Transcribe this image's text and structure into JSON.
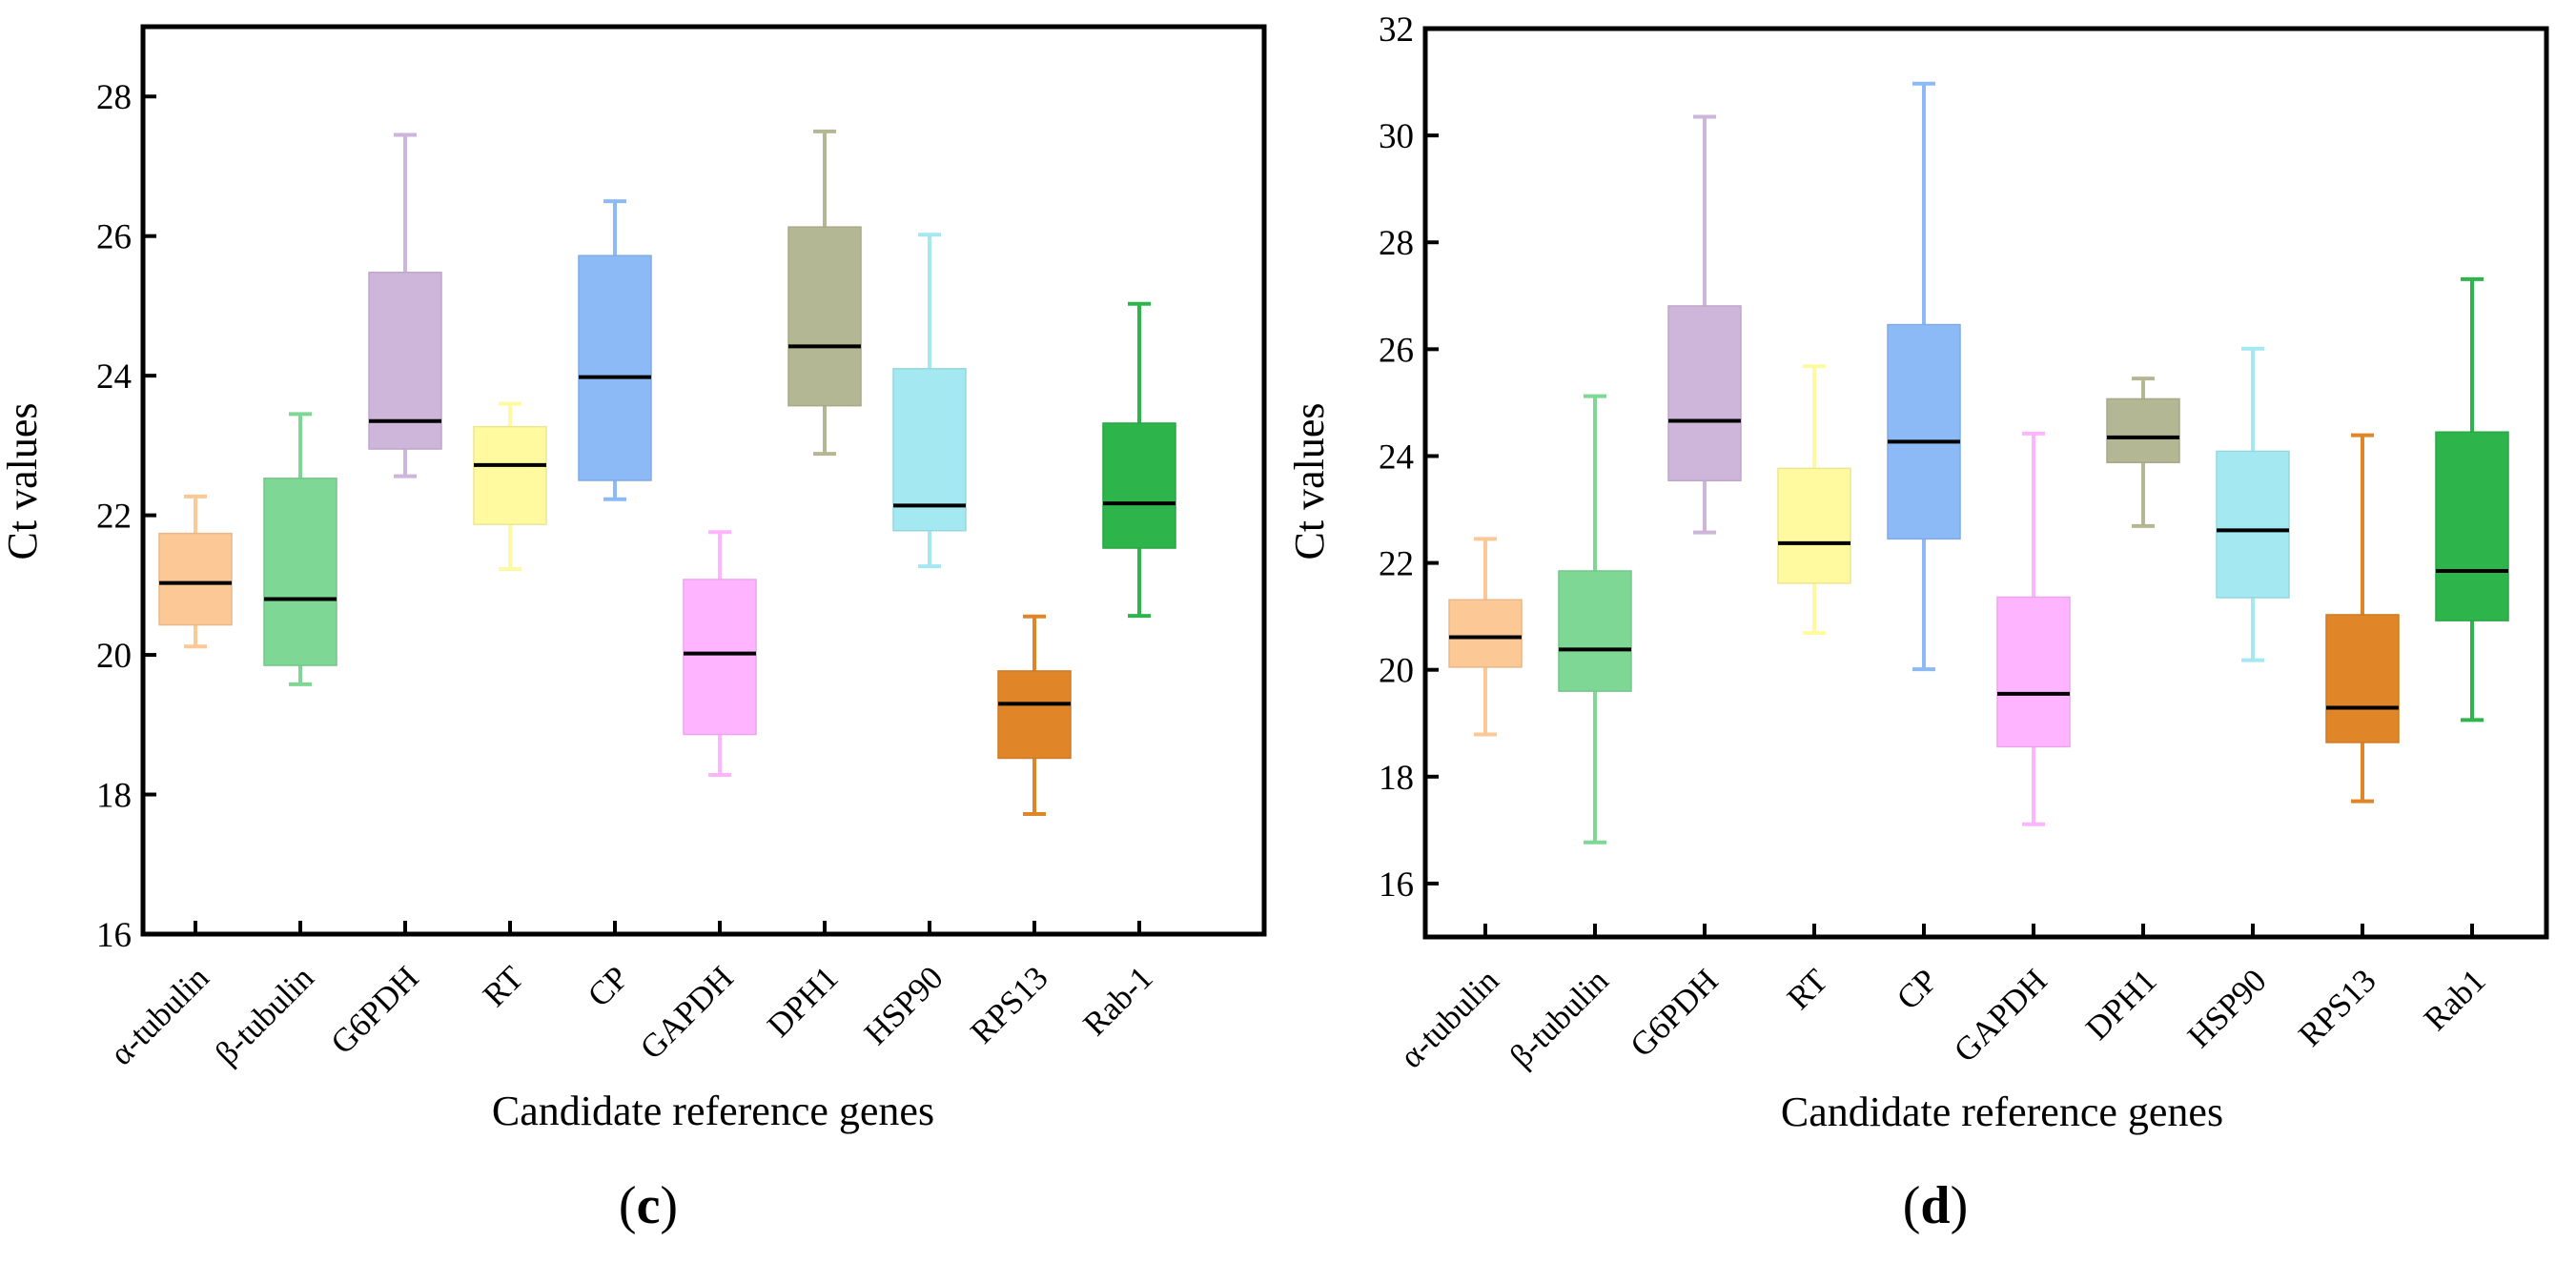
{
  "chart_data": [
    {
      "type": "box",
      "panel_label": "(c)",
      "panel_letter": "c",
      "xlabel": "Candidate reference genes",
      "ylabel": "Ct values",
      "ylim": [
        16,
        29
      ],
      "yticks": [
        16,
        18,
        20,
        22,
        24,
        26,
        28
      ],
      "categories": [
        "α-tubulin",
        "β-tubulin",
        "G6PDH",
        "RT",
        "CP",
        "GAPDH",
        "DPH1",
        "HSP90",
        "RPS13",
        "Rab-1"
      ],
      "series": [
        {
          "name": "α-tubulin",
          "color": "#fcc896",
          "min": 20.12,
          "q1": 20.43,
          "median": 21.03,
          "q3": 21.74,
          "max": 22.27
        },
        {
          "name": "β-tubulin",
          "color": "#7fd796",
          "min": 19.58,
          "q1": 19.85,
          "median": 20.8,
          "q3": 22.53,
          "max": 23.45
        },
        {
          "name": "G6PDH",
          "color": "#ceb5da",
          "min": 22.56,
          "q1": 22.95,
          "median": 23.35,
          "q3": 25.48,
          "max": 27.45
        },
        {
          "name": "RT",
          "color": "#fffaa0",
          "min": 21.23,
          "q1": 21.87,
          "median": 22.72,
          "q3": 23.27,
          "max": 23.6
        },
        {
          "name": "CP",
          "color": "#8bbaf7",
          "min": 22.23,
          "q1": 22.5,
          "median": 23.98,
          "q3": 25.72,
          "max": 26.5
        },
        {
          "name": "GAPDH",
          "color": "#ffb4ff",
          "min": 18.28,
          "q1": 18.86,
          "median": 20.02,
          "q3": 21.08,
          "max": 21.76
        },
        {
          "name": "DPH1",
          "color": "#b4b793",
          "min": 22.88,
          "q1": 23.57,
          "median": 24.42,
          "q3": 26.13,
          "max": 27.5
        },
        {
          "name": "HSP90",
          "color": "#a4e9f1",
          "min": 21.27,
          "q1": 21.78,
          "median": 22.14,
          "q3": 24.1,
          "max": 26.02
        },
        {
          "name": "RPS13",
          "color": "#e08628",
          "min": 17.72,
          "q1": 18.52,
          "median": 19.3,
          "q3": 19.77,
          "max": 20.55
        },
        {
          "name": "Rab-1",
          "color": "#2db54b",
          "min": 20.56,
          "q1": 21.53,
          "median": 22.17,
          "q3": 23.32,
          "max": 25.03
        }
      ]
    },
    {
      "type": "box",
      "panel_label": "(d)",
      "panel_letter": "d",
      "xlabel": "Candidate reference genes",
      "ylabel": "Ct values",
      "ylim": [
        15,
        32
      ],
      "yticks": [
        16,
        18,
        20,
        22,
        24,
        26,
        28,
        30,
        32
      ],
      "categories": [
        "α-tubulin",
        "β-tubulin",
        "G6PDH",
        "RT",
        "CP",
        "GAPDH",
        "DPH1",
        "HSP90",
        "RPS13",
        "Rab1"
      ],
      "series": [
        {
          "name": "α-tubulin",
          "color": "#fcc896",
          "min": 18.79,
          "q1": 20.05,
          "median": 20.61,
          "q3": 21.31,
          "max": 22.45
        },
        {
          "name": "β-tubulin",
          "color": "#7fd796",
          "min": 16.77,
          "q1": 19.6,
          "median": 20.38,
          "q3": 21.85,
          "max": 25.12
        },
        {
          "name": "G6PDH",
          "color": "#ceb5da",
          "min": 22.57,
          "q1": 23.54,
          "median": 24.66,
          "q3": 26.81,
          "max": 30.35
        },
        {
          "name": "RT",
          "color": "#fffaa0",
          "min": 20.69,
          "q1": 21.62,
          "median": 22.37,
          "q3": 23.77,
          "max": 25.68
        },
        {
          "name": "CP",
          "color": "#8bbaf7",
          "min": 20.01,
          "q1": 22.45,
          "median": 24.27,
          "q3": 26.46,
          "max": 30.97
        },
        {
          "name": "GAPDH",
          "color": "#ffb4ff",
          "min": 17.11,
          "q1": 18.56,
          "median": 19.55,
          "q3": 21.36,
          "max": 24.42
        },
        {
          "name": "DPH1",
          "color": "#b4b793",
          "min": 22.69,
          "q1": 23.88,
          "median": 24.35,
          "q3": 25.07,
          "max": 25.45
        },
        {
          "name": "HSP90",
          "color": "#a4e9f1",
          "min": 20.18,
          "q1": 21.35,
          "median": 22.61,
          "q3": 24.09,
          "max": 26.01
        },
        {
          "name": "RPS13",
          "color": "#e08628",
          "min": 17.54,
          "q1": 18.64,
          "median": 19.29,
          "q3": 21.03,
          "max": 24.39
        },
        {
          "name": "Rab1",
          "color": "#2db54b",
          "min": 19.06,
          "q1": 20.92,
          "median": 21.85,
          "q3": 24.45,
          "max": 27.31
        }
      ]
    }
  ]
}
